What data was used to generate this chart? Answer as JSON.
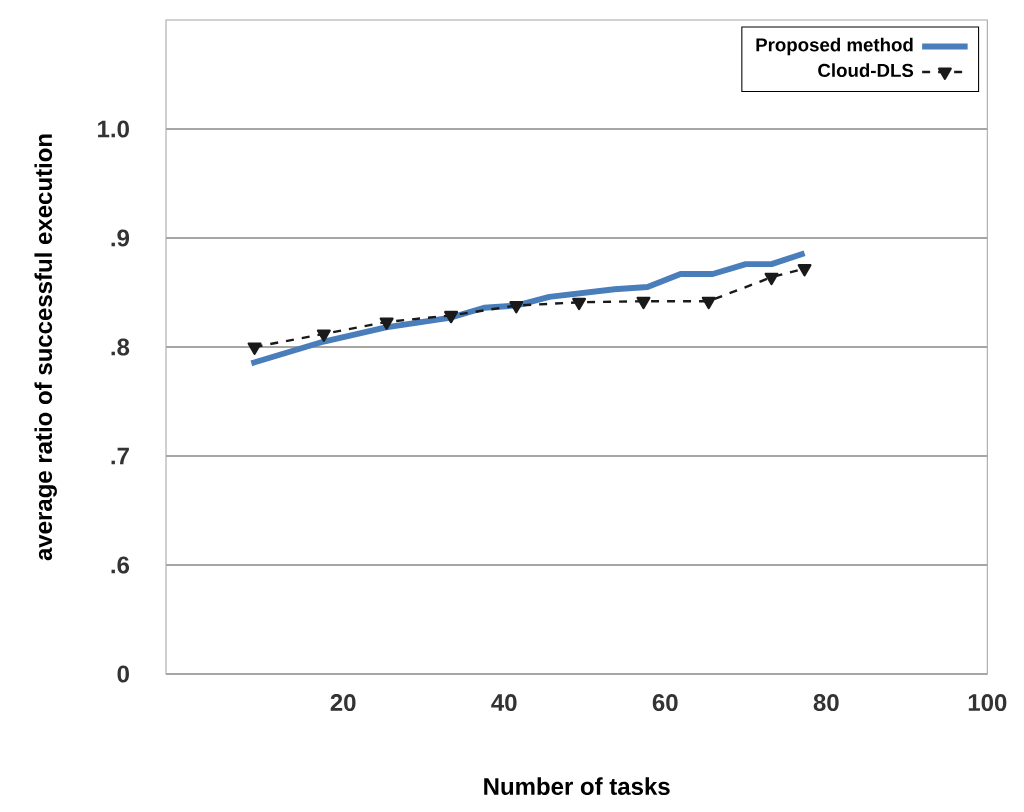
{
  "chart_data": {
    "type": "line",
    "xlabel": "Number of tasks",
    "ylabel": "average ratio of successful execution",
    "xlim": [
      -2,
      100
    ],
    "xticks": [
      20,
      40,
      60,
      80,
      100
    ],
    "ylim": [
      0.5,
      1.1
    ],
    "yticks": [
      {
        "value": 0.5,
        "label": "0"
      },
      {
        "value": 0.6,
        "label": ".6"
      },
      {
        "value": 0.7,
        "label": ".7"
      },
      {
        "value": 0.8,
        "label": ".8"
      },
      {
        "value": 0.9,
        "label": ".9"
      },
      {
        "value": 1.0,
        "label": "1.0"
      }
    ],
    "grid": "y",
    "legend": "top right",
    "series": [
      {
        "name": "Proposed method",
        "color": "#4a7ebb",
        "marker": "none",
        "line_style": "solid",
        "x": [
          8.6,
          17.6,
          25.3,
          33.4,
          37.5,
          41.5,
          45.6,
          53.7,
          57.8,
          61.9,
          65.9,
          70,
          73.2,
          77.3
        ],
        "values": [
          0.785,
          0.805,
          0.818,
          0.827,
          0.836,
          0.838,
          0.846,
          0.853,
          0.855,
          0.867,
          0.867,
          0.876,
          0.876,
          0.886
        ]
      },
      {
        "name": "Cloud-DLS",
        "color": "#1a1a1a",
        "marker": "triangle",
        "line_style": "dashed",
        "x": [
          9.0,
          17.6,
          25.4,
          33.4,
          41.5,
          49.3,
          57.3,
          65.4,
          73.2,
          77.3
        ],
        "values": [
          0.8,
          0.812,
          0.823,
          0.829,
          0.838,
          0.841,
          0.842,
          0.842,
          0.864,
          0.872
        ]
      }
    ]
  }
}
